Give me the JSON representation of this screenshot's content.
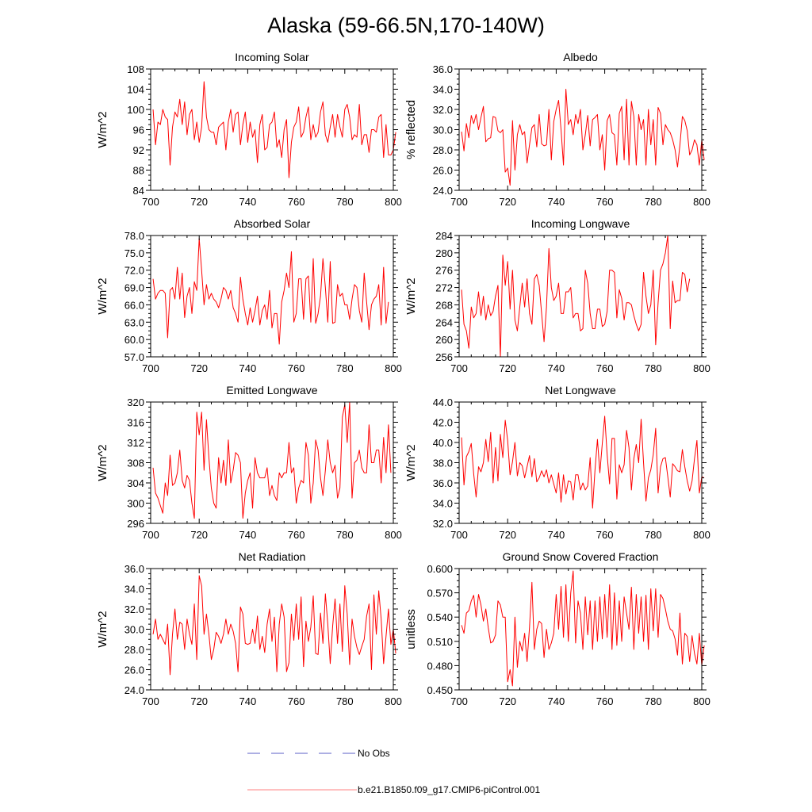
{
  "figure": {
    "title": "Alaska (59-66.5N,170-140W)"
  },
  "legend": {
    "items": [
      {
        "label": "No Obs",
        "color": "#5b5fc7",
        "dash": true
      },
      {
        "label": "b.e21.B1850.f09_g17.CMIP6-piControl.001",
        "color": "#ff0000",
        "dash": false
      }
    ]
  },
  "chart_data": [
    {
      "type": "line",
      "title": "Incoming Solar",
      "ylabel": "W/m^2",
      "xlim": [
        700,
        800
      ],
      "ylim": [
        84,
        108
      ],
      "yticks": [
        "84",
        "88",
        "92",
        "96",
        "100",
        "104",
        "108"
      ],
      "xticks": [
        "700",
        "720",
        "740",
        "760",
        "780",
        "800"
      ],
      "series": [
        {
          "name": "b.e21.B1850.f09_g17.CMIP6-piControl.001",
          "color": "#ff0000",
          "x_start": 701,
          "values": [
            100,
            93,
            97.5,
            97,
            100,
            98.5,
            98,
            89,
            96.5,
            99.5,
            98.5,
            102,
            97,
            101.5,
            95,
            99,
            100,
            94,
            97.5,
            93.5,
            96.5,
            105.5,
            98.5,
            96,
            95.5,
            95.5,
            93,
            96.5,
            97,
            97.5,
            92,
            97.5,
            100,
            95.5,
            99,
            99.5,
            93,
            97,
            99.5,
            93.5,
            97.5,
            94.5,
            96,
            89.5,
            97,
            99,
            92,
            92.5,
            97,
            97.5,
            99.5,
            92.5,
            94,
            90.5,
            96,
            98,
            86.5,
            93.5,
            96.5,
            97.5,
            100.5,
            94.5,
            95.5,
            98.5,
            100.5,
            94,
            97,
            94.5,
            95.5,
            99.5,
            101.5,
            95,
            93.5,
            96.5,
            99,
            94.5,
            99,
            96.5,
            94.5,
            100,
            101,
            98.5,
            94,
            95,
            94.5,
            101,
            93,
            95,
            95,
            91.5,
            96,
            96,
            95.5,
            98.5,
            99,
            90.5,
            97,
            91,
            91,
            92,
            95.5
          ]
        }
      ]
    },
    {
      "type": "line",
      "title": "Albedo",
      "ylabel": "% reflected",
      "xlim": [
        700,
        800
      ],
      "ylim": [
        24,
        36
      ],
      "yticks": [
        "24.0",
        "26.0",
        "28.0",
        "30.0",
        "32.0",
        "34.0",
        "36.0"
      ],
      "xticks": [
        "700",
        "720",
        "740",
        "760",
        "780",
        "800"
      ],
      "series": [
        {
          "name": "b.e21.B1850.f09_g17.CMIP6-piControl.001",
          "color": "#ff0000",
          "x_start": 701,
          "values": [
            29.8,
            27.9,
            30.6,
            29.2,
            31.4,
            30.6,
            31.5,
            30,
            31.2,
            32.3,
            28.8,
            29.1,
            29.2,
            31.3,
            31.2,
            29.9,
            29.7,
            30,
            25.8,
            26.2,
            24.5,
            30.9,
            26,
            29.5,
            30.5,
            29.5,
            29.8,
            26.7,
            28.5,
            30.2,
            30.5,
            28.3,
            31.5,
            28.6,
            28.4,
            28.5,
            32,
            27,
            30.8,
            32,
            32.9,
            30,
            26.5,
            34,
            30.5,
            31,
            29.5,
            31.5,
            30.6,
            32,
            28,
            29.5,
            31.4,
            28.4,
            31,
            31.2,
            31.5,
            28,
            29.5,
            26,
            30.9,
            31.5,
            29.7,
            29.5,
            26.5,
            31.6,
            32.3,
            27,
            33,
            26.5,
            32.8,
            31.3,
            26.5,
            31.5,
            30,
            31,
            26.5,
            32,
            28.5,
            31,
            26.5,
            32.2,
            31.6,
            28.5,
            30.5,
            30,
            29.7,
            29,
            28,
            26.3,
            28.5,
            31.3,
            30.9,
            29.9,
            27.5,
            28,
            29,
            28.5,
            26.5,
            29,
            27
          ]
        }
      ]
    },
    {
      "type": "line",
      "title": "Absorbed Solar",
      "ylabel": "W/m^2",
      "xlim": [
        700,
        800
      ],
      "ylim": [
        57,
        78
      ],
      "yticks": [
        "57.0",
        "60.0",
        "63.0",
        "66.0",
        "69.0",
        "72.0",
        "75.0",
        "78.0"
      ],
      "xticks": [
        "700",
        "720",
        "740",
        "760",
        "780",
        "800"
      ],
      "series": [
        {
          "name": "b.e21.B1850.f09_g17.CMIP6-piControl.001",
          "color": "#ff0000",
          "x_start": 701,
          "values": [
            70.5,
            67,
            68,
            68.5,
            68.5,
            68,
            60.3,
            68.5,
            69,
            67,
            72.5,
            67,
            71.5,
            63.8,
            67.5,
            69,
            64.5,
            70,
            68.5,
            77.5,
            72,
            66,
            69.5,
            67,
            68,
            67,
            66.5,
            65.5,
            67,
            69,
            68.5,
            67,
            68.5,
            65.5,
            64.5,
            63,
            70.8,
            67,
            64.5,
            62.5,
            65.5,
            63,
            65,
            67.5,
            62.5,
            65,
            66,
            63.5,
            68.5,
            62,
            64.5,
            64.5,
            59.2,
            66.5,
            68.5,
            71.5,
            69,
            75.2,
            63,
            64.5,
            70.5,
            70.5,
            63.5,
            70.5,
            71,
            63,
            74,
            62.8,
            64.5,
            67.5,
            74,
            69,
            63,
            73.5,
            62.8,
            63,
            69.5,
            67.5,
            68,
            66,
            66,
            63.5,
            67,
            69.5,
            69,
            65,
            63,
            71.5,
            66.5,
            61.7,
            66,
            67,
            67.5,
            69.5,
            62.5,
            72.5,
            62.8,
            66.5
          ]
        }
      ]
    },
    {
      "type": "line",
      "title": "Incoming Longwave",
      "ylabel": "W/m^2",
      "xlim": [
        700,
        800
      ],
      "ylim": [
        256,
        284
      ],
      "yticks": [
        "256",
        "260",
        "264",
        "268",
        "272",
        "276",
        "280",
        "284"
      ],
      "xticks": [
        "700",
        "720",
        "740",
        "760",
        "780",
        "800"
      ],
      "series": [
        {
          "name": "b.e21.B1850.f09_g17.CMIP6-piControl.001",
          "color": "#ff0000",
          "x_start": 701,
          "values": [
            271.5,
            263.5,
            262,
            258,
            267.5,
            265,
            266,
            271,
            265.5,
            270,
            264.5,
            268,
            265.5,
            266.5,
            270,
            272.5,
            256,
            279.5,
            272.5,
            278,
            267,
            276,
            264.5,
            262,
            267.5,
            273,
            267.5,
            274,
            266,
            263.5,
            274,
            275,
            272.5,
            266,
            259.5,
            267.5,
            281,
            272,
            269,
            270,
            273,
            266,
            266,
            271,
            271,
            272,
            265,
            266,
            266,
            262,
            262.5,
            276,
            273,
            266,
            262.5,
            262.5,
            267,
            267,
            263,
            263.5,
            266.5,
            276,
            276,
            275.5,
            265,
            271.5,
            269.5,
            264.5,
            268.5,
            268.5,
            268,
            265.5,
            263.5,
            262,
            263.5,
            275.5,
            270,
            266,
            268,
            276,
            258.8,
            268.5,
            276,
            277.5,
            280,
            284,
            262.5,
            273.5,
            268.5,
            269,
            269,
            275.5,
            275,
            271,
            274
          ]
        }
      ]
    },
    {
      "type": "line",
      "title": "Emitted Longwave",
      "ylabel": "W/m^2",
      "xlim": [
        700,
        800
      ],
      "ylim": [
        296,
        320
      ],
      "yticks": [
        "296",
        "300",
        "304",
        "308",
        "312",
        "316",
        "320"
      ],
      "xticks": [
        "700",
        "720",
        "740",
        "760",
        "780",
        "800"
      ],
      "series": [
        {
          "name": "b.e21.B1850.f09_g17.CMIP6-piControl.001",
          "color": "#ff0000",
          "x_start": 701,
          "values": [
            307,
            302,
            301,
            299.5,
            298,
            304,
            301.5,
            309.5,
            303.5,
            304,
            306,
            310.5,
            304.5,
            303,
            305.5,
            304.5,
            300,
            297,
            318,
            313.5,
            318,
            306.5,
            316.5,
            309,
            303,
            300,
            299,
            309,
            304,
            308.5,
            303.5,
            312.5,
            304,
            306.5,
            310,
            309.5,
            308,
            297,
            302,
            304.5,
            306,
            299,
            309,
            306,
            305,
            305,
            305,
            307,
            301.5,
            303.5,
            301.5,
            300.5,
            306,
            305,
            306,
            306,
            312,
            306,
            307,
            300,
            303,
            304.5,
            304,
            312,
            309.5,
            300,
            304,
            312.5,
            310.5,
            305,
            301.5,
            306.5,
            312.5,
            308,
            306,
            307.5,
            301,
            303,
            317,
            319.5,
            312,
            320,
            301,
            308,
            308.5,
            310.5,
            307,
            306,
            306,
            315.5,
            308,
            308,
            310.5,
            310.5,
            304,
            313,
            306,
            315.5,
            306
          ]
        }
      ]
    },
    {
      "type": "line",
      "title": "Net Longwave",
      "ylabel": "W/m^2",
      "xlim": [
        700,
        800
      ],
      "ylim": [
        32,
        44
      ],
      "yticks": [
        "32.0",
        "34.0",
        "36.0",
        "38.0",
        "40.0",
        "42.0",
        "44.0"
      ],
      "xticks": [
        "700",
        "720",
        "740",
        "760",
        "780",
        "800"
      ],
      "series": [
        {
          "name": "b.e21.B1850.f09_g17.CMIP6-piControl.001",
          "color": "#ff0000",
          "x_start": 701,
          "values": [
            40.5,
            35.8,
            38.6,
            39.1,
            39.9,
            36.9,
            34.6,
            37.6,
            37.1,
            38,
            40.3,
            38.1,
            41,
            36,
            39.5,
            36.2,
            40.8,
            38.5,
            42.2,
            40.2,
            36.8,
            38.1,
            40,
            36.7,
            38,
            37.7,
            36.5,
            37.6,
            38.7,
            36.6,
            38.4,
            36.1,
            36.5,
            37.2,
            36.6,
            37.3,
            36,
            36.8,
            35.9,
            35,
            37,
            34.1,
            36.8,
            34.9,
            36.2,
            36.1,
            34.3,
            36.8,
            36.8,
            35.3,
            36,
            35.3,
            35.7,
            38.5,
            33.5,
            37.3,
            40.3,
            37,
            39.9,
            42.6,
            38.8,
            35.9,
            40.4,
            40.4,
            34.4,
            37.8,
            37,
            37.8,
            41.2,
            39.5,
            35.3,
            38.4,
            39.8,
            38,
            42.3,
            38,
            34.2,
            36.5,
            37.3,
            38.8,
            41.4,
            35,
            37.6,
            38.4,
            38.5,
            36.6,
            34.6,
            37.9,
            37.6,
            37.2,
            37.1,
            39.3,
            37.6,
            36.2,
            35.2,
            36.2,
            38.4,
            40.2,
            35,
            36.6,
            36.5
          ]
        }
      ]
    },
    {
      "type": "line",
      "title": "Net Radiation",
      "ylabel": "W/m^2",
      "xlim": [
        700,
        800
      ],
      "ylim": [
        24,
        36
      ],
      "yticks": [
        "24.0",
        "26.0",
        "28.0",
        "30.0",
        "32.0",
        "34.0",
        "36.0"
      ],
      "xticks": [
        "700",
        "720",
        "740",
        "760",
        "780",
        "800"
      ],
      "series": [
        {
          "name": "b.e21.B1850.f09_g17.CMIP6-piControl.001",
          "color": "#ff0000",
          "x_start": 701,
          "values": [
            29.5,
            31,
            29,
            29.5,
            29,
            28.5,
            30.5,
            25.5,
            29.5,
            32,
            29,
            30.7,
            30.5,
            28,
            31,
            29.5,
            28.5,
            32.5,
            27,
            35.3,
            34.3,
            29.5,
            31.5,
            29.5,
            27,
            28,
            29.7,
            29.3,
            28.6,
            29.5,
            31,
            29.5,
            30.5,
            29.8,
            28.6,
            25.8,
            32.2,
            31.5,
            28.6,
            28.5,
            28.6,
            30,
            28.6,
            31.3,
            28,
            29.3,
            27.7,
            30.5,
            32,
            28.8,
            31.2,
            25.8,
            30.5,
            32.5,
            31.2,
            25.8,
            26.7,
            31.5,
            28.9,
            32.5,
            29,
            33.2,
            26.3,
            30.8,
            28.8,
            30.2,
            33.3,
            27.6,
            27.5,
            31.6,
            28.6,
            33.5,
            30.5,
            26.6,
            30.3,
            33,
            28.6,
            32.5,
            27.8,
            34.3,
            31.5,
            26.5,
            31,
            29.3,
            28.2,
            27.5,
            28.3,
            29,
            31.3,
            32.5,
            26,
            33.4,
            29.5,
            33.8,
            31,
            26.6,
            29.3,
            32,
            28.5,
            30,
            27.6
          ]
        }
      ]
    },
    {
      "type": "line",
      "title": "Ground Snow Covered Fraction",
      "ylabel": "unitless",
      "xlim": [
        700,
        800
      ],
      "ylim": [
        0.45,
        0.6
      ],
      "yticks": [
        "0.450",
        "0.480",
        "0.510",
        "0.540",
        "0.570",
        "0.600"
      ],
      "xticks": [
        "700",
        "720",
        "740",
        "760",
        "780",
        "800"
      ],
      "series": [
        {
          "name": "b.e21.B1850.f09_g17.CMIP6-piControl.001",
          "color": "#ff0000",
          "x_start": 701,
          "values": [
            0.53,
            0.52,
            0.545,
            0.548,
            0.56,
            0.567,
            0.54,
            0.568,
            0.555,
            0.535,
            0.55,
            0.527,
            0.508,
            0.51,
            0.518,
            0.56,
            0.555,
            0.54,
            0.54,
            0.46,
            0.475,
            0.455,
            0.54,
            0.478,
            0.51,
            0.498,
            0.52,
            0.485,
            0.527,
            0.583,
            0.5,
            0.525,
            0.535,
            0.532,
            0.49,
            0.525,
            0.5,
            0.508,
            0.52,
            0.568,
            0.525,
            0.578,
            0.515,
            0.58,
            0.51,
            0.57,
            0.597,
            0.508,
            0.56,
            0.545,
            0.5,
            0.565,
            0.518,
            0.56,
            0.5,
            0.56,
            0.51,
            0.565,
            0.513,
            0.568,
            0.515,
            0.58,
            0.5,
            0.57,
            0.505,
            0.56,
            0.51,
            0.565,
            0.545,
            0.525,
            0.577,
            0.5,
            0.568,
            0.52,
            0.565,
            0.51,
            0.567,
            0.5,
            0.575,
            0.523,
            0.575,
            0.515,
            0.568,
            0.563,
            0.55,
            0.535,
            0.525,
            0.523,
            0.513,
            0.493,
            0.545,
            0.482,
            0.52,
            0.516,
            0.485,
            0.517,
            0.495,
            0.482,
            0.52,
            0.48,
            0.505
          ]
        }
      ]
    }
  ]
}
